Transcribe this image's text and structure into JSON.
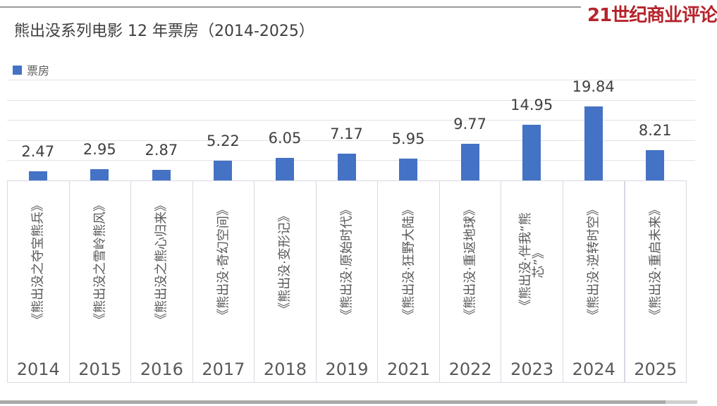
{
  "header": {
    "title": "熊出没系列电影 12 年票房（2014-2025）"
  },
  "brand": {
    "name": "21世纪商业评论",
    "color": "#b5242c"
  },
  "legend": {
    "label": "票房",
    "swatch_color": "#4472c4"
  },
  "chart_data": {
    "type": "bar",
    "title": "熊出没系列电影 12 年票房（2014-2025）",
    "legend_position": "top-left",
    "bar_color": "#4472c4",
    "grid": "horizontal gridlines, unlabeled y-axis",
    "ylim": [
      0,
      27
    ],
    "categories": [
      "2014",
      "2015",
      "2016",
      "2017",
      "2018",
      "2019",
      "2021",
      "2022",
      "2023",
      "2024",
      "2025"
    ],
    "category_movies": [
      "《熊出没之夺宝熊兵》",
      "《熊出没之雪岭熊风》",
      "《熊出没之熊心归来》",
      "《熊出没·奇幻空间》",
      "《熊出没·变形记》",
      "《熊出没·原始时代》",
      "《熊出没·狂野大陆》",
      "《熊出没·重返地球》",
      "《熊出没·伴我“熊\n芯”》",
      "《熊出没·逆转时空》",
      "《熊出没·重启未来》"
    ],
    "series": [
      {
        "name": "票房",
        "values": [
          2.47,
          2.95,
          2.87,
          5.22,
          6.05,
          7.17,
          5.95,
          9.77,
          14.95,
          19.84,
          8.21
        ]
      }
    ],
    "data_labels_shown": true
  }
}
